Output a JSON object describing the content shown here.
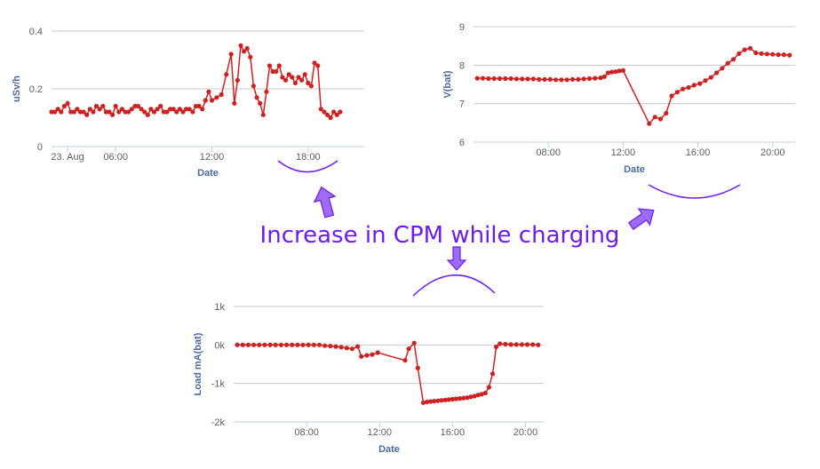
{
  "annotation": {
    "text": "Increase in CPM while charging",
    "color": "#6b1cf5"
  },
  "chart_data": [
    {
      "type": "line",
      "ylabel": "uSv/h",
      "xlabel": "Date",
      "ylim": [
        0,
        0.4
      ],
      "yticks": [
        {
          "value": 0,
          "label": "0"
        },
        {
          "value": 0.2,
          "label": "0.2"
        },
        {
          "value": 0.4,
          "label": "0.4"
        }
      ],
      "xlim": [
        2.0,
        21.5
      ],
      "xticks": [
        {
          "value": 3,
          "label": "23. Aug"
        },
        {
          "value": 6,
          "label": "06:00"
        },
        {
          "value": 12,
          "label": "12:00"
        },
        {
          "value": 18,
          "label": "18:00"
        }
      ],
      "grid": true,
      "color": "#cc2222",
      "series": [
        {
          "x": [
            2.0,
            2.2,
            2.4,
            2.6,
            2.8,
            3.0,
            3.2,
            3.4,
            3.6,
            3.8,
            4.0,
            4.2,
            4.4,
            4.6,
            4.8,
            5.0,
            5.2,
            5.4,
            5.6,
            5.8,
            6.0,
            6.2,
            6.4,
            6.6,
            6.8,
            7.0,
            7.2,
            7.4,
            7.6,
            7.8,
            8.0,
            8.2,
            8.4,
            8.6,
            8.8,
            9.0,
            9.2,
            9.4,
            9.6,
            9.8,
            10.0,
            10.2,
            10.4,
            10.6,
            10.8,
            11.0,
            11.2,
            11.4,
            11.6,
            11.8,
            12.0,
            12.3,
            12.6,
            12.9,
            13.2,
            13.4,
            13.6,
            13.8,
            14.0,
            14.2,
            14.4,
            14.6,
            14.8,
            15.0,
            15.2,
            15.4,
            15.6,
            15.8,
            16.0,
            16.2,
            16.4,
            16.6,
            16.8,
            17.0,
            17.2,
            17.4,
            17.6,
            17.8,
            18.0,
            18.2,
            18.4,
            18.6,
            18.8,
            19.0,
            19.2,
            19.4,
            19.6,
            19.8,
            20.0
          ],
          "y": [
            0.12,
            0.12,
            0.13,
            0.12,
            0.14,
            0.15,
            0.12,
            0.12,
            0.13,
            0.12,
            0.12,
            0.11,
            0.13,
            0.12,
            0.14,
            0.13,
            0.14,
            0.12,
            0.12,
            0.11,
            0.14,
            0.12,
            0.13,
            0.12,
            0.12,
            0.13,
            0.14,
            0.14,
            0.13,
            0.12,
            0.11,
            0.13,
            0.12,
            0.13,
            0.14,
            0.12,
            0.12,
            0.13,
            0.13,
            0.12,
            0.13,
            0.12,
            0.13,
            0.13,
            0.12,
            0.14,
            0.14,
            0.13,
            0.16,
            0.19,
            0.16,
            0.17,
            0.18,
            0.25,
            0.32,
            0.15,
            0.23,
            0.35,
            0.33,
            0.34,
            0.31,
            0.21,
            0.17,
            0.15,
            0.11,
            0.19,
            0.28,
            0.26,
            0.26,
            0.28,
            0.24,
            0.23,
            0.25,
            0.24,
            0.22,
            0.24,
            0.23,
            0.25,
            0.22,
            0.21,
            0.29,
            0.28,
            0.13,
            0.12,
            0.11,
            0.1,
            0.12,
            0.11,
            0.12
          ]
        }
      ]
    },
    {
      "type": "line",
      "ylabel": "V(bat)",
      "xlabel": "Date",
      "ylim": [
        6,
        9
      ],
      "yticks": [
        {
          "value": 6,
          "label": "6"
        },
        {
          "value": 7,
          "label": "7"
        },
        {
          "value": 8,
          "label": "8"
        },
        {
          "value": 9,
          "label": "9"
        }
      ],
      "xlim": [
        4.0,
        21.2
      ],
      "xticks": [
        {
          "value": 8,
          "label": "08:00"
        },
        {
          "value": 12,
          "label": "12:00"
        },
        {
          "value": 16,
          "label": "16:00"
        },
        {
          "value": 20,
          "label": "20:00"
        }
      ],
      "grid": true,
      "color": "#cc2222",
      "series": [
        {
          "x": [
            4.2,
            4.5,
            4.8,
            5.1,
            5.4,
            5.7,
            6.0,
            6.3,
            6.6,
            6.9,
            7.2,
            7.5,
            7.8,
            8.1,
            8.4,
            8.7,
            9.0,
            9.3,
            9.6,
            9.9,
            10.2,
            10.5,
            10.8,
            11.0,
            11.2,
            11.4,
            11.6,
            11.8,
            12.0,
            13.4,
            13.7,
            14.0,
            14.3,
            14.6,
            14.9,
            15.2,
            15.5,
            15.8,
            16.1,
            16.4,
            16.7,
            17.0,
            17.3,
            17.6,
            17.9,
            18.2,
            18.5,
            18.8,
            19.1,
            19.4,
            19.7,
            20.0,
            20.3,
            20.6,
            20.9
          ],
          "y": [
            7.66,
            7.66,
            7.65,
            7.65,
            7.65,
            7.65,
            7.65,
            7.64,
            7.64,
            7.64,
            7.64,
            7.63,
            7.63,
            7.63,
            7.62,
            7.62,
            7.62,
            7.63,
            7.63,
            7.64,
            7.65,
            7.66,
            7.67,
            7.7,
            7.8,
            7.82,
            7.83,
            7.85,
            7.86,
            6.48,
            6.65,
            6.6,
            6.75,
            7.2,
            7.3,
            7.38,
            7.42,
            7.48,
            7.52,
            7.6,
            7.68,
            7.8,
            7.92,
            8.05,
            8.15,
            8.3,
            8.4,
            8.44,
            8.32,
            8.3,
            8.29,
            8.28,
            8.27,
            8.27,
            8.26
          ]
        }
      ]
    },
    {
      "type": "line",
      "ylabel": "Load mA(bat)",
      "xlabel": "Date",
      "ylim": [
        -2000,
        1000
      ],
      "yticks": [
        {
          "value": -2000,
          "label": "-2k"
        },
        {
          "value": -1000,
          "label": "-1k"
        },
        {
          "value": 0,
          "label": "0k"
        },
        {
          "value": 1000,
          "label": "1k"
        }
      ],
      "xlim": [
        4.0,
        21.0
      ],
      "xticks": [
        {
          "value": 8,
          "label": "08:00"
        },
        {
          "value": 12,
          "label": "12:00"
        },
        {
          "value": 16,
          "label": "16:00"
        },
        {
          "value": 20,
          "label": "20:00"
        }
      ],
      "grid": true,
      "color": "#cc2222",
      "series": [
        {
          "x": [
            4.2,
            4.5,
            4.8,
            5.1,
            5.4,
            5.7,
            6.0,
            6.3,
            6.6,
            6.9,
            7.2,
            7.5,
            7.8,
            8.1,
            8.4,
            8.7,
            9.0,
            9.3,
            9.6,
            9.9,
            10.2,
            10.5,
            10.8,
            11.0,
            11.3,
            11.6,
            11.9,
            13.4,
            13.6,
            13.9,
            14.1,
            14.4,
            14.6,
            14.8,
            15.0,
            15.2,
            15.4,
            15.6,
            15.8,
            16.0,
            16.2,
            16.4,
            16.6,
            16.8,
            17.0,
            17.2,
            17.4,
            17.6,
            17.8,
            18.0,
            18.2,
            18.4,
            18.6,
            18.9,
            19.2,
            19.5,
            19.8,
            20.1,
            20.4,
            20.7
          ],
          "y": [
            0,
            0,
            0,
            0,
            0,
            0,
            0,
            0,
            0,
            0,
            0,
            0,
            0,
            0,
            0,
            0,
            -20,
            -30,
            -40,
            -60,
            -80,
            -100,
            -40,
            -300,
            -270,
            -250,
            -200,
            -400,
            -100,
            50,
            -600,
            -1500,
            -1480,
            -1470,
            -1460,
            -1450,
            -1440,
            -1430,
            -1420,
            -1410,
            -1400,
            -1390,
            -1380,
            -1370,
            -1350,
            -1330,
            -1300,
            -1280,
            -1250,
            -1100,
            -750,
            -50,
            30,
            20,
            10,
            10,
            10,
            10,
            10,
            0
          ]
        }
      ]
    }
  ]
}
